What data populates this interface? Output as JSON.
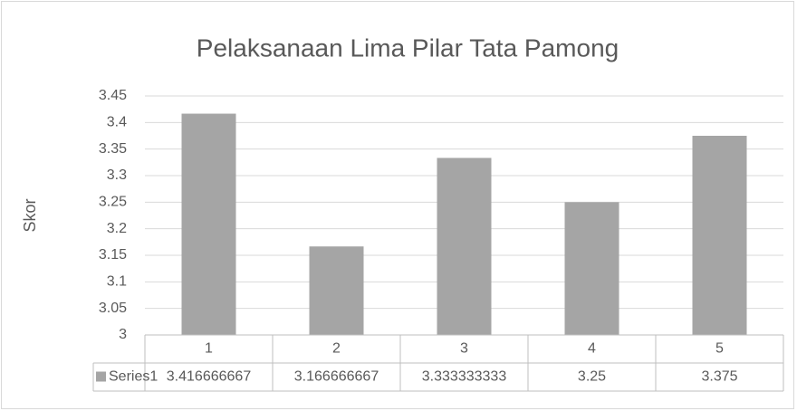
{
  "chart_data": {
    "type": "bar",
    "title": "Pelaksanaan Lima Pilar Tata Pamong",
    "y_label": "Skor",
    "categories": [
      "1",
      "2",
      "3",
      "4",
      "5"
    ],
    "series": [
      {
        "name": "Series1",
        "color": "#a5a5a5",
        "values": [
          3.416666667,
          3.166666667,
          3.333333333,
          3.25,
          3.375
        ]
      }
    ],
    "ylim": [
      3,
      3.45
    ],
    "yticks": [
      3,
      3.05,
      3.1,
      3.15,
      3.2,
      3.25,
      3.3,
      3.35,
      3.4,
      3.45
    ],
    "grid": true,
    "data_table": true
  }
}
